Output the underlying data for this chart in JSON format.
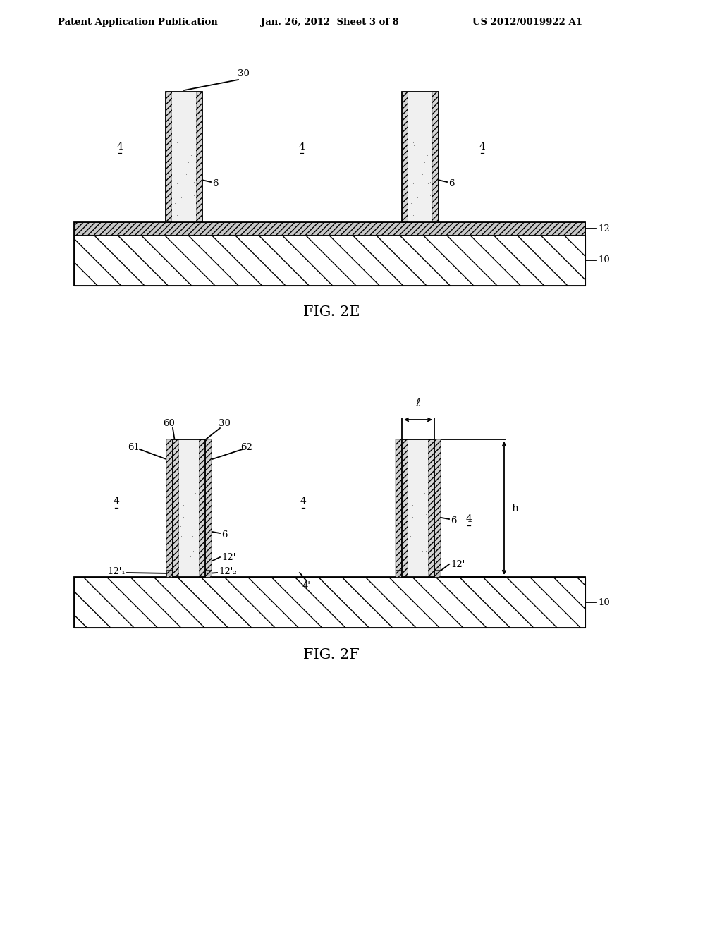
{
  "title_left": "Patent Application Publication",
  "title_center": "Jan. 26, 2012  Sheet 3 of 8",
  "title_right": "US 2012/0019922 A1",
  "bg_color": "#ffffff",
  "line_color": "#000000",
  "fig2e_label": "FIG. 2E",
  "fig2f_label": "FIG. 2F"
}
